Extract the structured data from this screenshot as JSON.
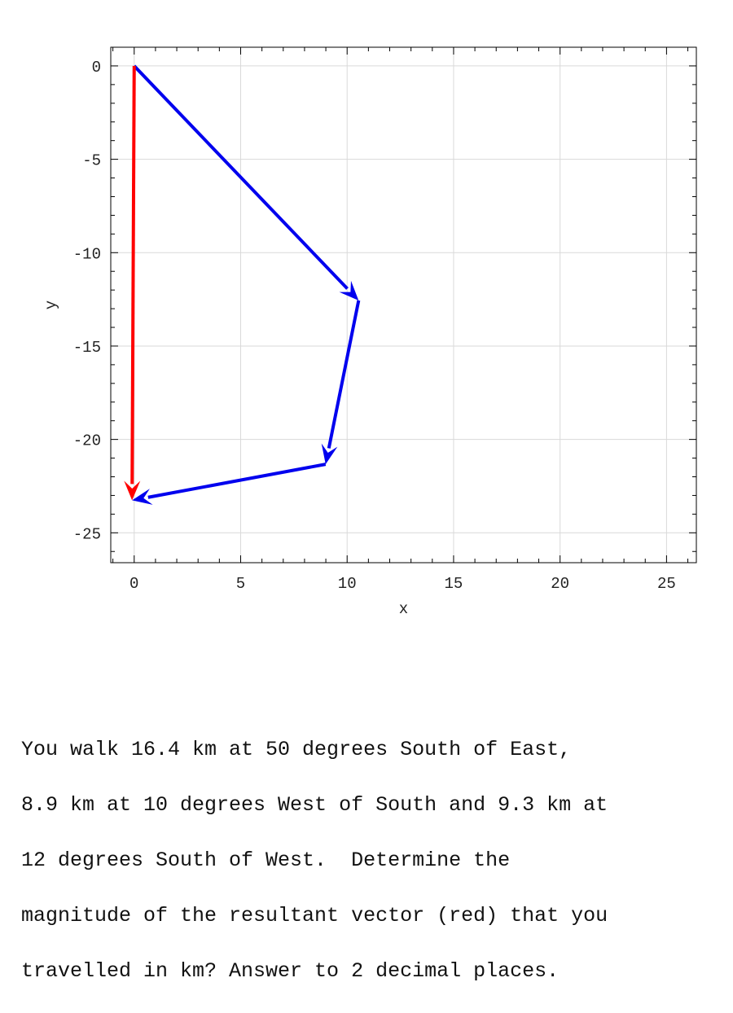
{
  "chart_data": {
    "type": "vector-plot",
    "xlabel": "x",
    "ylabel": "y",
    "xlim": [
      -1.1,
      26.4
    ],
    "ylim": [
      -26.6,
      1.0
    ],
    "xticks": [
      0,
      5,
      10,
      15,
      20,
      25
    ],
    "yticks": [
      0,
      -5,
      -10,
      -15,
      -20,
      -25
    ],
    "grid": true,
    "series": [
      {
        "role": "component",
        "color": "#0000ee",
        "start": [
          0,
          0
        ],
        "end": [
          10.54,
          -12.56
        ]
      },
      {
        "role": "component",
        "color": "#0000ee",
        "start": [
          10.54,
          -12.56
        ],
        "end": [
          8.99,
          -21.33
        ]
      },
      {
        "role": "component",
        "color": "#0000ee",
        "start": [
          8.99,
          -21.33
        ],
        "end": [
          -0.1,
          -23.26
        ]
      },
      {
        "role": "resultant",
        "color": "#ff0000",
        "start": [
          0,
          0
        ],
        "end": [
          -0.1,
          -23.26
        ]
      }
    ]
  },
  "question": {
    "lines": [
      "You walk 16.4 km at 50 degrees South of East,",
      "8.9 km at 10 degrees West of South and 9.3 km at",
      "12 degrees South of West.  Determine the",
      "magnitude of the resultant vector (red) that you",
      "travelled in km? Answer to 2 decimal places."
    ]
  }
}
